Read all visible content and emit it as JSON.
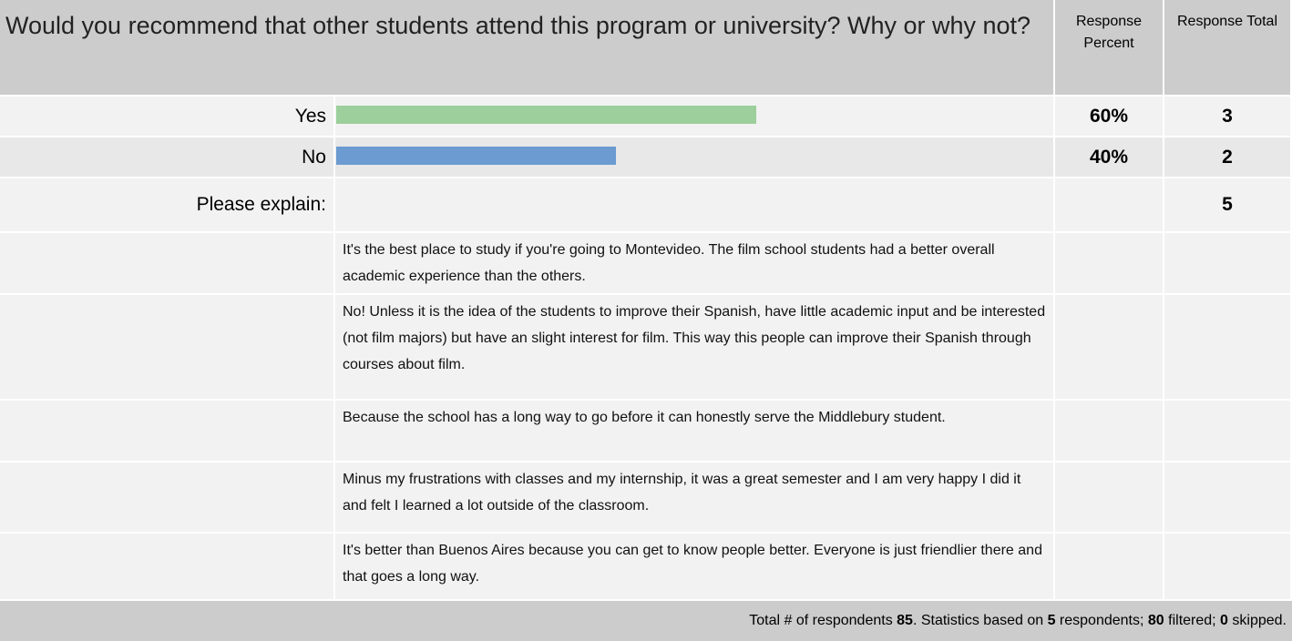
{
  "header": {
    "question": "Would you recommend that other students attend this program or university? Why or why not?",
    "percent_heading": "Response Percent",
    "total_heading": "Response Total"
  },
  "options": [
    {
      "label": "Yes",
      "percent": {
        "value": 60,
        "label": "60%"
      },
      "total": 3,
      "color": "#9ccf9c"
    },
    {
      "label": "No",
      "percent": {
        "value": 40,
        "label": "40%"
      },
      "total": 2,
      "color": "#6b9bd0"
    }
  ],
  "explain": {
    "label": "Please explain:",
    "total": 5
  },
  "comments": [
    "It's the best place to study if you're going to Montevideo.  The film school students had a better overall academic experience than the others.",
    "No! Unless it is the idea of the students to improve their Spanish, have little academic input and be interested (not film majors) but have an slight interest for film.  This way this people can improve their Spanish through courses about film.",
    "Because the school has a long way to go before it can honestly serve the Middlebury student.",
    "Minus my frustrations with classes and my internship, it was a great semester and I am very happy I did it and felt I learned a lot outside of the classroom.",
    "It's better than Buenos Aires because you can get to know people better. Everyone is just friendlier there and that goes a long way."
  ],
  "footer": [
    "Total # of respondents ",
    85,
    ". Statistics based on ",
    5,
    " respondents; ",
    80,
    " filtered; ",
    0,
    " skipped."
  ]
}
